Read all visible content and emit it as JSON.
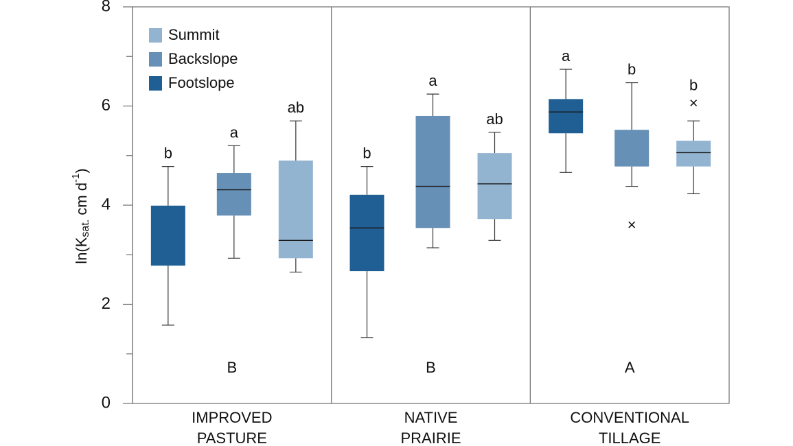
{
  "chart_data": {
    "type": "box",
    "ylabel_main": "ln(K",
    "ylabel_sub": "sat.",
    "ylabel_unit": " cm d",
    "ylabel_sup": "-1",
    "ylabel_close": ")",
    "ylim": [
      0,
      8
    ],
    "yticks": [
      "0",
      "2",
      "4",
      "6",
      "8"
    ],
    "grid": false,
    "legend_position": "top-left",
    "colors": {
      "Footslope": "#1f5f93",
      "Backslope": "#6690b5",
      "Summit": "#93b4d1"
    },
    "series": [
      {
        "name": "Summit",
        "color": "#93b4d1"
      },
      {
        "name": "Backslope",
        "color": "#6690b5"
      },
      {
        "name": "Footslope",
        "color": "#1f5f93"
      }
    ],
    "panels": [
      {
        "label": [
          "IMPROVED",
          "PASTURE"
        ],
        "group_letter": "B",
        "boxes": [
          {
            "series": "Footslope",
            "whisker_low": 1.58,
            "q1": 2.78,
            "median": null,
            "q3": 3.99,
            "whisker_high": 4.78,
            "letter": "b",
            "outliers": []
          },
          {
            "series": "Backslope",
            "whisker_low": 2.93,
            "q1": 3.79,
            "median": 4.31,
            "q3": 4.65,
            "whisker_high": 5.2,
            "letter": "a",
            "outliers": []
          },
          {
            "series": "Summit",
            "whisker_low": 2.65,
            "q1": 2.93,
            "median": 3.29,
            "q3": 4.9,
            "whisker_high": 5.7,
            "letter": "ab",
            "outliers": []
          }
        ]
      },
      {
        "label": [
          "NATIVE",
          "PRAIRIE"
        ],
        "group_letter": "B",
        "boxes": [
          {
            "series": "Footslope",
            "whisker_low": 1.33,
            "q1": 2.67,
            "median": 3.54,
            "q3": 4.21,
            "whisker_high": 4.78,
            "letter": "b",
            "outliers": []
          },
          {
            "series": "Backslope",
            "whisker_low": 3.14,
            "q1": 3.54,
            "median": 4.38,
            "q3": 5.8,
            "whisker_high": 6.24,
            "letter": "a",
            "outliers": []
          },
          {
            "series": "Summit",
            "whisker_low": 3.29,
            "q1": 3.72,
            "median": 4.43,
            "q3": 5.05,
            "whisker_high": 5.47,
            "letter": "ab",
            "outliers": []
          }
        ]
      },
      {
        "label": [
          "CONVENTIONAL",
          "TILLAGE"
        ],
        "group_letter": "A",
        "boxes": [
          {
            "series": "Footslope",
            "whisker_low": 4.66,
            "q1": 5.45,
            "median": 5.88,
            "q3": 6.14,
            "whisker_high": 6.74,
            "letter": "a",
            "outliers": []
          },
          {
            "series": "Backslope",
            "whisker_low": 4.38,
            "q1": 4.78,
            "median": null,
            "q3": 5.52,
            "whisker_high": 6.47,
            "letter": "b",
            "outliers": [
              3.58
            ]
          },
          {
            "series": "Summit",
            "whisker_low": 4.23,
            "q1": 4.78,
            "median": 5.06,
            "q3": 5.3,
            "whisker_high": 5.7,
            "letter": "b",
            "outliers": [
              6.04
            ]
          }
        ]
      }
    ]
  }
}
